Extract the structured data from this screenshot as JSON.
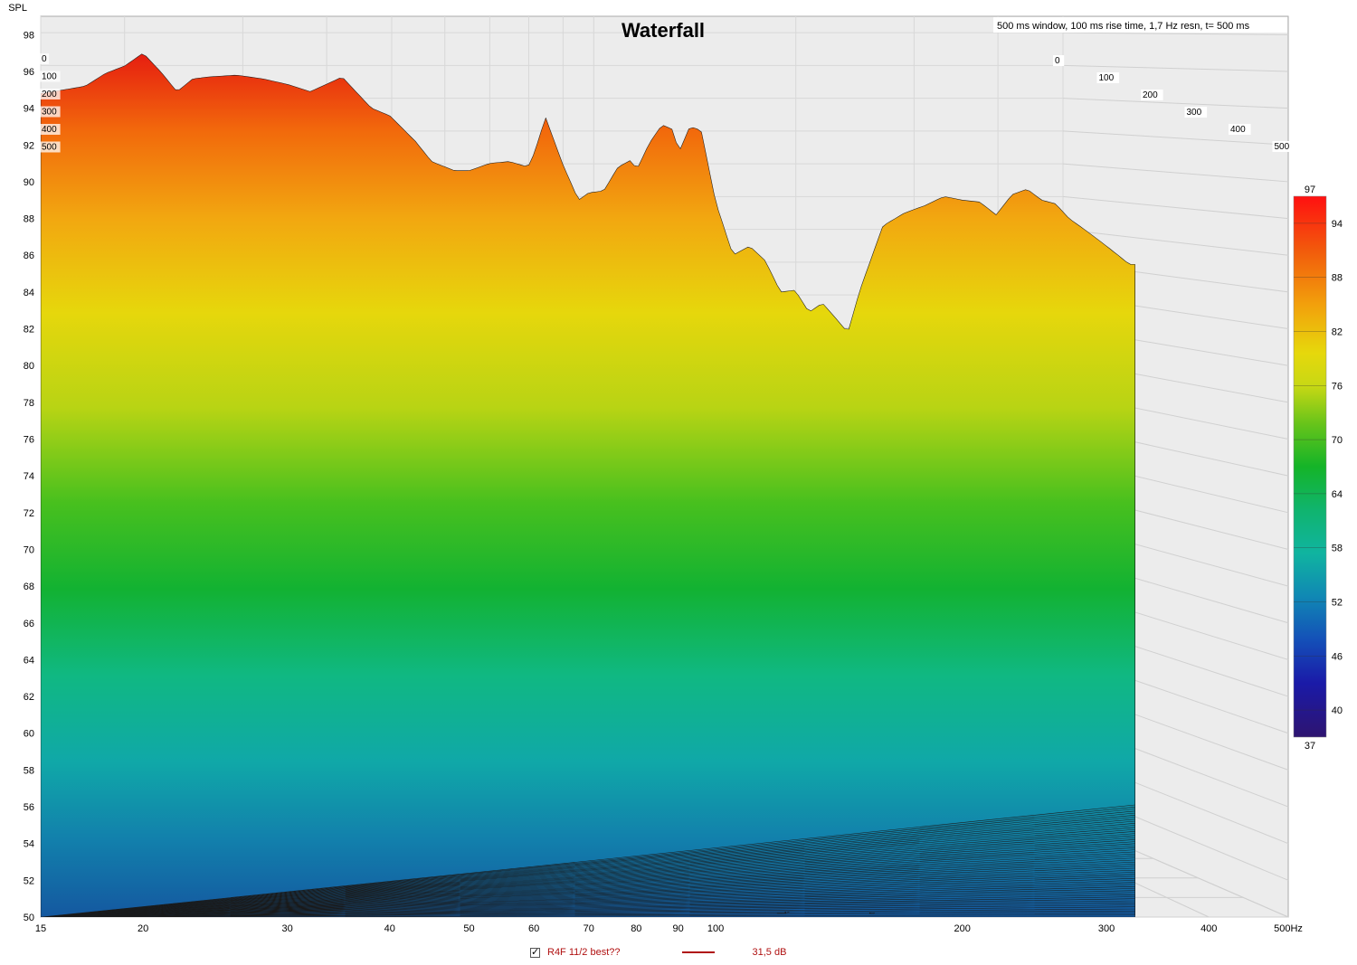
{
  "chart_data": {
    "type": "waterfall",
    "title": "Waterfall",
    "subtitle": "500 ms window, 100 ms rise time,  1,7 Hz resn, t= 500 ms",
    "ylabel": "SPL",
    "x_unit": "Hz",
    "x_scale": "log",
    "xlim": [
      15,
      500
    ],
    "ylim": [
      50,
      99
    ],
    "x_ticks": [
      "15",
      "20",
      "30",
      "40",
      "50",
      "60",
      "70",
      "80",
      "90",
      "100",
      "200",
      "300",
      "400",
      "500Hz"
    ],
    "x_tick_values": [
      15,
      20,
      30,
      40,
      50,
      60,
      70,
      80,
      90,
      100,
      200,
      300,
      400,
      500
    ],
    "y_ticks": [
      "50",
      "52",
      "54",
      "56",
      "58",
      "60",
      "62",
      "64",
      "66",
      "68",
      "70",
      "72",
      "74",
      "76",
      "78",
      "80",
      "82",
      "84",
      "86",
      "88",
      "90",
      "92",
      "94",
      "96",
      "98"
    ],
    "time_ticks_ms": [
      "0",
      "100",
      "200",
      "300",
      "400",
      "500"
    ],
    "colorbar": {
      "min_label": "37",
      "max_label": "97",
      "ticks": [
        "94",
        "88",
        "82",
        "76",
        "70",
        "64",
        "58",
        "52",
        "46",
        "40"
      ]
    },
    "front_response": {
      "freq": [
        15,
        16,
        17,
        18,
        19,
        20,
        21,
        22,
        23,
        24,
        26,
        28,
        30,
        32,
        35,
        38,
        40,
        43,
        45,
        48,
        50,
        53,
        56,
        59,
        60,
        62,
        65,
        68,
        70,
        73,
        76,
        79,
        80,
        83,
        86,
        89,
        90,
        93,
        96,
        100,
        105,
        110,
        115,
        120,
        125,
        130,
        135,
        140,
        145,
        150,
        160,
        170,
        180,
        190,
        200,
        210,
        220,
        230,
        240,
        250,
        260,
        270,
        280,
        290,
        300,
        310,
        320
      ],
      "spl": [
        94.8,
        95.0,
        95.2,
        95.9,
        96.3,
        97.0,
        96.0,
        94.9,
        95.6,
        95.7,
        95.8,
        95.6,
        95.3,
        94.9,
        95.7,
        94.0,
        93.6,
        92.2,
        91.1,
        90.6,
        90.6,
        91.0,
        91.1,
        90.8,
        91.5,
        93.5,
        91.0,
        89.0,
        89.4,
        89.5,
        90.8,
        91.2,
        90.6,
        92.1,
        93.1,
        92.8,
        91.5,
        93.0,
        92.8,
        88.9,
        86.0,
        86.5,
        85.7,
        84.0,
        84.1,
        82.9,
        83.4,
        82.6,
        81.8,
        84.1,
        87.6,
        88.3,
        88.7,
        89.2,
        89.0,
        88.9,
        88.2,
        89.3,
        89.6,
        89.0,
        88.8,
        88.0,
        87.5,
        87.0,
        86.5,
        86.0,
        85.5
      ]
    },
    "legend": [
      {
        "label": "R4F 11/2 best??",
        "value": "31,5 dB",
        "color": "#b01010",
        "checked": true
      }
    ]
  }
}
